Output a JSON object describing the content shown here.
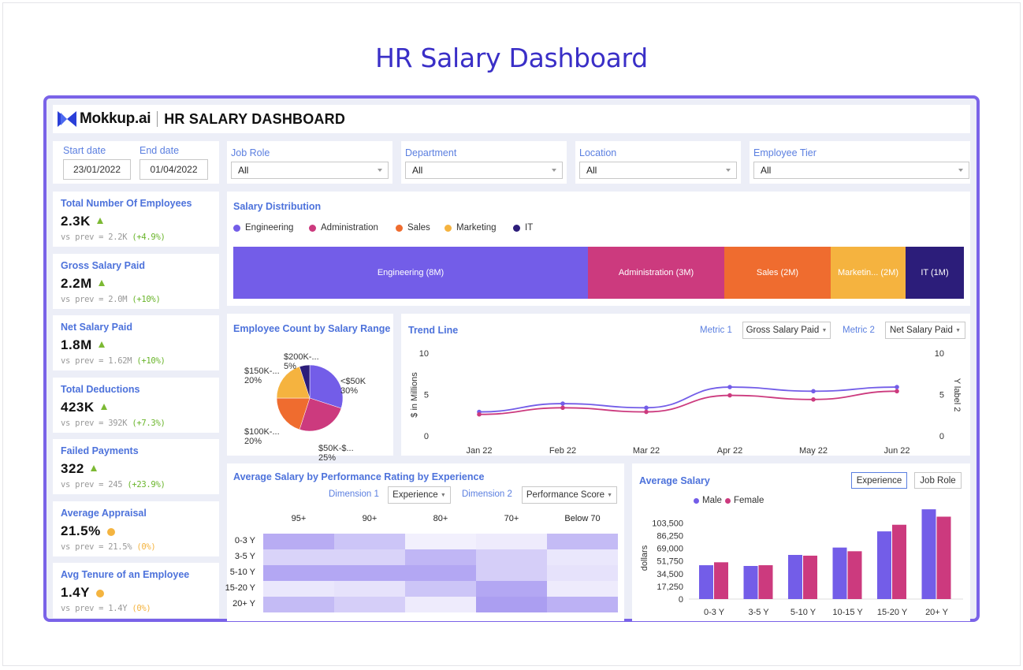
{
  "page_title": "HR Salary Dashboard",
  "header": {
    "logo": "Mokkup.ai",
    "title": "HR SALARY DASHBOARD",
    "logo_icon": "mokkup-logo-icon"
  },
  "filters": {
    "start_label": "Start date",
    "start_value": "23/01/2022",
    "end_label": "End date",
    "end_value": "01/04/2022",
    "dropdowns": [
      {
        "label": "Job Role",
        "value": "All"
      },
      {
        "label": "Department",
        "value": "All"
      },
      {
        "label": "Location",
        "value": "All"
      },
      {
        "label": "Employee Tier",
        "value": "All"
      }
    ]
  },
  "kpis": [
    {
      "title": "Total Number Of Employees",
      "value": "2.3K",
      "prev": "vs prev =  2.2K",
      "change": "(+4.9%)",
      "trend": "up"
    },
    {
      "title": "Gross Salary Paid",
      "value": "2.2M",
      "prev": "vs prev =  2.0M",
      "change": "(+10%)",
      "trend": "up"
    },
    {
      "title": "Net Salary Paid",
      "value": "1.8M",
      "prev": "vs prev =  1.62M",
      "change": "(+10%)",
      "trend": "up"
    },
    {
      "title": "Total Deductions",
      "value": "423K",
      "prev": "vs prev =  392K",
      "change": "(+7.3%)",
      "trend": "up"
    },
    {
      "title": "Failed Payments",
      "value": "322",
      "prev": "vs prev =  245",
      "change": "(+23.9%)",
      "trend": "up"
    },
    {
      "title": "Average Appraisal",
      "value": "21.5%",
      "prev": "vs prev =  21.5%",
      "change": "(0%)",
      "trend": "flat"
    },
    {
      "title": "Avg Tenure of an Employee",
      "value": "1.4Y",
      "prev": "vs prev =  1.4Y",
      "change": "(0%)",
      "trend": "flat"
    }
  ],
  "colors": {
    "engineering": "#735de8",
    "administration": "#cc3a7e",
    "sales": "#ef6c2f",
    "marketing": "#f5b33f",
    "it": "#2c1d7a",
    "male": "#735de8",
    "female": "#cc3a7e",
    "accent": "#4d72db",
    "up": "#7cb933",
    "flat": "#f4b440"
  },
  "salary_distribution": {
    "title": "Salary Distribution",
    "legend": [
      "Engineering",
      "Administration",
      "Sales",
      "Marketing",
      "IT"
    ],
    "segments": [
      {
        "label": "Engineering (8M)",
        "value": 8
      },
      {
        "label": "Administration (3M)",
        "value": 3
      },
      {
        "label": "Sales (2M)",
        "value": 2
      },
      {
        "label": "Marketin... (2M)",
        "value": 2
      },
      {
        "label": "IT (1M)",
        "value": 1
      }
    ]
  },
  "pie": {
    "title": "Employee Count by Salary Range",
    "labels": [
      {
        "line1": "<$50K",
        "line2": "30%"
      },
      {
        "line1": "$50K-$...",
        "line2": "25%"
      },
      {
        "line1": "$100K-...",
        "line2": "20%"
      },
      {
        "line1": "$150K-...",
        "line2": "20%"
      },
      {
        "line1": "$200K-...",
        "line2": "5%"
      }
    ]
  },
  "trend": {
    "title": "Trend Line",
    "metric1_label": "Metric 1",
    "metric1_value": "Gross Salary Paid",
    "metric2_label": "Metric 2",
    "metric2_value": "Net Salary Paid",
    "ylabel": "$ in Millions",
    "ylabel2": "Y label 2",
    "yticks": [
      "10",
      "5",
      "0"
    ],
    "y2ticks": [
      "10",
      "5",
      "0"
    ]
  },
  "heatmap": {
    "title": "Average Salary by Performance Rating by Experience",
    "dim1_label": "Dimension 1",
    "dim1_value": "Experience",
    "dim2_label": "Dimension 2",
    "dim2_value": "Performance Score",
    "cols": [
      "95+",
      "90+",
      "80+",
      "70+",
      "Below 70"
    ],
    "rows": [
      "0-3 Y",
      "3-5 Y",
      "5-10 Y",
      "15-20 Y",
      "20+ Y"
    ],
    "values": [
      [
        0.75,
        0.5,
        0.05,
        0.1,
        0.6
      ],
      [
        0.35,
        0.35,
        0.65,
        0.4,
        0.15
      ],
      [
        0.8,
        0.8,
        0.8,
        0.4,
        0.2
      ],
      [
        0.15,
        0.2,
        0.5,
        0.8,
        0.1
      ],
      [
        0.6,
        0.4,
        0.1,
        0.9,
        0.7
      ]
    ]
  },
  "avg_salary": {
    "title": "Average Salary",
    "btn1": "Experience",
    "btn2": "Job Role",
    "legend": [
      "Male",
      "Female"
    ],
    "ylabel": "dollars"
  },
  "chart_data": [
    {
      "type": "bar",
      "title": "Salary Distribution",
      "categories": [
        "Engineering",
        "Administration",
        "Sales",
        "Marketing",
        "IT"
      ],
      "values": [
        8,
        3,
        2,
        2,
        1
      ]
    },
    {
      "type": "pie",
      "title": "Employee Count by Salary Range",
      "categories": [
        "<$50K",
        "$50K-$...",
        "$100K-...",
        "$150K-...",
        "$200K-..."
      ],
      "values": [
        30,
        25,
        20,
        20,
        5
      ]
    },
    {
      "type": "line",
      "title": "Trend Line",
      "categories": [
        "Jan 22",
        "Feb 22",
        "Mar 22",
        "Apr 22",
        "May 22",
        "Jun 22"
      ],
      "ylim": [
        0,
        10
      ],
      "series": [
        {
          "name": "Gross Salary Paid",
          "values": [
            2.9,
            3.9,
            3.4,
            5.9,
            5.4,
            5.9
          ]
        },
        {
          "name": "Net Salary Paid",
          "values": [
            2.6,
            3.4,
            2.9,
            4.9,
            4.4,
            5.4
          ]
        }
      ]
    },
    {
      "type": "heatmap",
      "title": "Average Salary by Performance Rating by Experience",
      "x": [
        "95+",
        "90+",
        "80+",
        "70+",
        "Below 70"
      ],
      "y": [
        "0-3 Y",
        "3-5 Y",
        "5-10 Y",
        "15-20 Y",
        "20+ Y"
      ]
    },
    {
      "type": "bar",
      "title": "Average Salary",
      "categories": [
        "0-3 Y",
        "3-5 Y",
        "5-10 Y",
        "10-15 Y",
        "15-20 Y",
        "20+ Y"
      ],
      "yticks": [
        "103,500",
        "86,250",
        "69,000",
        "51,750",
        "34,500",
        "17,250",
        "0"
      ],
      "ylabel": "dollars",
      "ylim": [
        0,
        120000
      ],
      "series": [
        {
          "name": "Male",
          "values": [
            46000,
            45000,
            60000,
            70000,
            92000,
            122000
          ]
        },
        {
          "name": "Female",
          "values": [
            50000,
            46000,
            59000,
            65000,
            101000,
            112000
          ]
        }
      ]
    }
  ]
}
